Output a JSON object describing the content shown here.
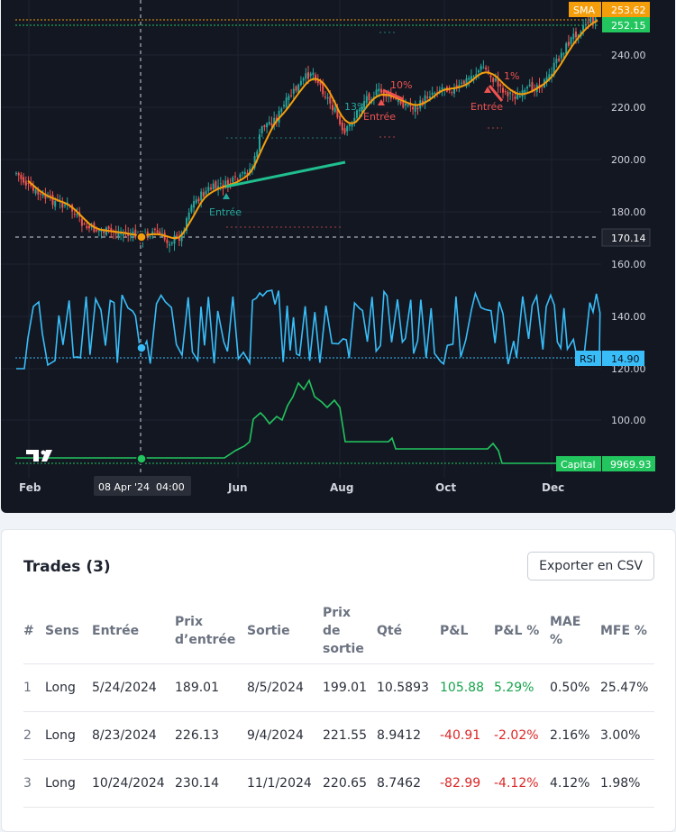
{
  "chart": {
    "price_axis": [
      "240.00",
      "220.00",
      "200.00",
      "180.00",
      "160.00",
      "140.00",
      "120.00",
      "100.00"
    ],
    "months": [
      "Feb",
      "Jun",
      "Aug",
      "Oct",
      "Dec"
    ],
    "crosshair_time": "08 Apr '24  04:00",
    "crosshair_price": "170.14",
    "sma_tag": {
      "label": "SMA",
      "value": "253.62",
      "color": "#f59e0b"
    },
    "last_price_tag": {
      "value": "252.15",
      "color": "#22c55e"
    },
    "rsi_tag": {
      "label": "RSI",
      "value": "14.90",
      "color": "#38bdf8"
    },
    "capital_tag": {
      "label": "Capital",
      "value": "9969.93",
      "color": "#22c55e"
    },
    "entry_markers": [
      "Entrée",
      "Entrée",
      "Entrée"
    ],
    "pct_markers": [
      "13%",
      "10%",
      "1%"
    ],
    "logo": "TV",
    "colors": {
      "up": "#26a69a",
      "down": "#ef5350",
      "sma": "#f59e0b",
      "rsi": "#38bdf8",
      "capital": "#22c55e"
    }
  },
  "trades": {
    "title": "Trades (3)",
    "export_label": "Exporter en CSV",
    "headers": [
      "#",
      "Sens",
      "Entrée",
      "Prix d’entrée",
      "Sortie",
      "Prix de sortie",
      "Qté",
      "P&L",
      "P&L %",
      "MAE %",
      "MFE %"
    ],
    "rows": [
      {
        "idx": "1",
        "side": "Long",
        "entry": "5/24/2024",
        "entry_price": "189.01",
        "exit": "8/5/2024",
        "exit_price": "199.01",
        "qty": "10.5893",
        "pnl": "105.88",
        "pnl_pct": "5.29%",
        "mae": "0.50%",
        "mfe": "25.47%",
        "positive": true
      },
      {
        "idx": "2",
        "side": "Long",
        "entry": "8/23/2024",
        "entry_price": "226.13",
        "exit": "9/4/2024",
        "exit_price": "221.55",
        "qty": "8.9412",
        "pnl": "-40.91",
        "pnl_pct": "-2.02%",
        "mae": "2.16%",
        "mfe": "3.00%",
        "positive": false
      },
      {
        "idx": "3",
        "side": "Long",
        "entry": "10/24/2024",
        "entry_price": "230.14",
        "exit": "11/1/2024",
        "exit_price": "220.65",
        "qty": "8.7462",
        "pnl": "-82.99",
        "pnl_pct": "-4.12%",
        "mae": "4.12%",
        "mfe": "1.98%",
        "positive": false
      }
    ]
  }
}
